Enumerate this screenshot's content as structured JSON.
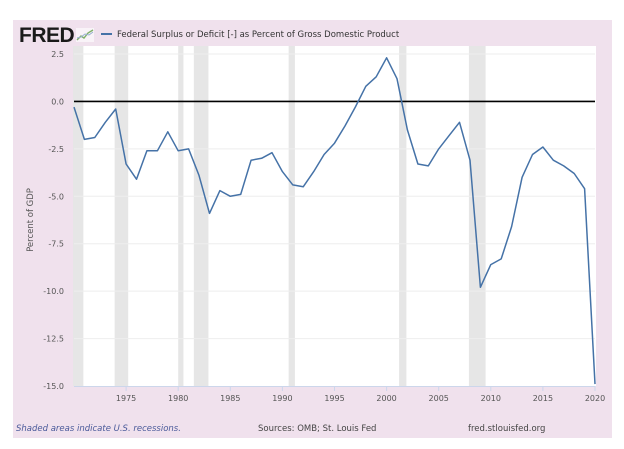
{
  "header": {
    "logo_text": "FRED",
    "logo_icon": "trend-chart-icon",
    "legend_label": "Federal Surplus or Deficit [-] as Percent of Gross Domestic Product",
    "series_color": "#4572a7"
  },
  "footer": {
    "note": "Shaded areas indicate U.S. recessions.",
    "source": "Sources: OMB; St. Louis Fed",
    "site": "fred.stlouisfed.org"
  },
  "colors": {
    "background": "#f0e1ed",
    "plot_background": "#ffffff",
    "recession_shade": "#e6e6e6",
    "zero_line": "#000000",
    "gridline": "#eeeeee"
  },
  "chart_data": {
    "type": "line",
    "title": "Federal Surplus or Deficit [-] as Percent of Gross Domestic Product",
    "xlabel": "",
    "ylabel": "Percent of GDP",
    "xlim": [
      1970,
      2020
    ],
    "ylim": [
      -15.0,
      2.5
    ],
    "grid": true,
    "legend": "top-left",
    "x_ticks": [
      1975,
      1980,
      1985,
      1990,
      1995,
      2000,
      2005,
      2010,
      2015,
      2020
    ],
    "x_tick_labels": [
      "1975",
      "1980",
      "1985",
      "1990",
      "1995",
      "2000",
      "2005",
      "2010",
      "2015",
      "2020"
    ],
    "y_ticks": [
      2.5,
      0.0,
      -2.5,
      -5.0,
      -7.5,
      -10.0,
      -12.5,
      -15.0
    ],
    "y_tick_labels": [
      "2.5",
      "0.0",
      "-2.5",
      "-5.0",
      "-7.5",
      "-10.0",
      "-12.5",
      "-15.0"
    ],
    "reference_line": 0.0,
    "recessions": [
      [
        1969.9,
        1970.9
      ],
      [
        1973.9,
        1975.2
      ],
      [
        1980.0,
        1980.5
      ],
      [
        1981.5,
        1982.9
      ],
      [
        1990.6,
        1991.2
      ],
      [
        2001.2,
        2001.9
      ],
      [
        2007.9,
        2009.5
      ]
    ],
    "series": [
      {
        "name": "Federal Surplus or Deficit [-] as Percent of Gross Domestic Product",
        "x": [
          1970,
          1971,
          1972,
          1973,
          1974,
          1975,
          1976,
          1977,
          1978,
          1979,
          1980,
          1981,
          1982,
          1983,
          1984,
          1985,
          1986,
          1987,
          1988,
          1989,
          1990,
          1991,
          1992,
          1993,
          1994,
          1995,
          1996,
          1997,
          1998,
          1999,
          2000,
          2001,
          2002,
          2003,
          2004,
          2005,
          2006,
          2007,
          2008,
          2009,
          2010,
          2011,
          2012,
          2013,
          2014,
          2015,
          2016,
          2017,
          2018,
          2019,
          2020
        ],
        "values": [
          -0.3,
          -2.0,
          -1.9,
          -1.1,
          -0.4,
          -3.3,
          -4.1,
          -2.6,
          -2.6,
          -1.6,
          -2.6,
          -2.5,
          -3.9,
          -5.9,
          -4.7,
          -5.0,
          -4.9,
          -3.1,
          -3.0,
          -2.7,
          -3.7,
          -4.4,
          -4.5,
          -3.7,
          -2.8,
          -2.2,
          -1.3,
          -0.3,
          0.8,
          1.3,
          2.3,
          1.2,
          -1.5,
          -3.3,
          -3.4,
          -2.5,
          -1.8,
          -1.1,
          -3.1,
          -9.8,
          -8.6,
          -8.3,
          -6.6,
          -4.0,
          -2.8,
          -2.4,
          -3.1,
          -3.4,
          -3.8,
          -4.6,
          -14.9
        ]
      }
    ]
  }
}
